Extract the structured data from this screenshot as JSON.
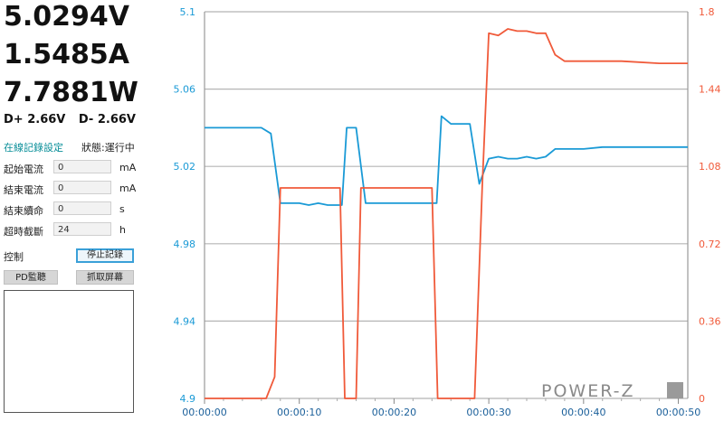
{
  "readings": {
    "voltage": "5.0294V",
    "current": "1.5485A",
    "power": "7.7881W",
    "dplus": "D+ 2.66V",
    "dminus": "D- 2.66V"
  },
  "online_record": {
    "title": "在線記錄設定",
    "status": "狀態:運行中",
    "fields": [
      {
        "label": "起始電流",
        "value": "0",
        "unit": "mA"
      },
      {
        "label": "結束電流",
        "value": "0",
        "unit": "mA"
      },
      {
        "label": "結束續命",
        "value": "0",
        "unit": "s"
      },
      {
        "label": "超時截斷",
        "value": "24",
        "unit": "h"
      }
    ]
  },
  "controls": {
    "label": "控制",
    "stop_button": "停止記錄",
    "pd_button": "PD監聽",
    "capture_button": "抓取屏幕"
  },
  "logo": "POWER-Z",
  "colors": {
    "voltage_series": "#1a9ad6",
    "current_series": "#f05a3a",
    "grid": "#b5b5b5"
  },
  "chart_data": {
    "type": "line",
    "x_ticks": [
      "00:00:00",
      "00:00:10",
      "00:00:20",
      "00:00:30",
      "00:00:40",
      "00:00:50"
    ],
    "x_range_s": [
      0,
      51
    ],
    "y_left": {
      "ticks": [
        "4.9",
        "4.94",
        "4.98",
        "5.02",
        "5.06",
        "5.1"
      ],
      "range": [
        4.9,
        5.1
      ],
      "color": "#1a9ad6"
    },
    "y_right": {
      "ticks": [
        "0",
        "0.36",
        "0.72",
        "1.08",
        "1.44",
        "1.8"
      ],
      "range": [
        0,
        1.8
      ],
      "color": "#f05a3a"
    },
    "grid": true,
    "series": [
      {
        "axis": "left",
        "color": "#1a9ad6",
        "x": [
          0,
          2,
          4,
          6,
          7,
          8,
          9,
          10,
          11,
          12,
          13,
          14.5,
          15,
          16,
          17,
          18,
          20,
          23,
          24.5,
          25,
          26,
          28,
          29,
          30,
          31,
          32,
          33,
          34,
          35,
          36,
          37,
          38,
          40,
          42,
          44,
          46,
          48,
          50,
          51
        ],
        "values": [
          5.04,
          5.04,
          5.04,
          5.04,
          5.037,
          5.001,
          5.001,
          5.001,
          5.0,
          5.001,
          5.0,
          5.0,
          5.04,
          5.04,
          5.001,
          5.001,
          5.001,
          5.001,
          5.001,
          5.046,
          5.042,
          5.042,
          5.011,
          5.024,
          5.025,
          5.024,
          5.024,
          5.025,
          5.024,
          5.025,
          5.029,
          5.029,
          5.029,
          5.03,
          5.03,
          5.03,
          5.03,
          5.03,
          5.03
        ]
      },
      {
        "axis": "right",
        "color": "#f05a3a",
        "x": [
          0,
          6.5,
          7.4,
          8,
          9,
          14.3,
          14.8,
          15.2,
          16,
          16.5,
          17,
          24,
          24.6,
          25.2,
          28.5,
          29.3,
          30,
          31,
          32,
          33,
          34,
          35,
          36,
          37,
          38,
          40,
          44,
          48,
          51
        ],
        "values": [
          0,
          0,
          0.1,
          0.98,
          0.98,
          0.98,
          0,
          0,
          0,
          0.98,
          0.98,
          0.98,
          0,
          0,
          0,
          0.98,
          1.7,
          1.69,
          1.72,
          1.71,
          1.71,
          1.7,
          1.7,
          1.6,
          1.57,
          1.57,
          1.57,
          1.56,
          1.56
        ]
      }
    ]
  }
}
